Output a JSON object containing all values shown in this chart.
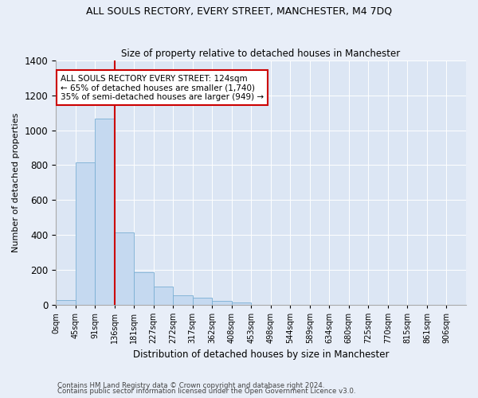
{
  "title": "ALL SOULS RECTORY, EVERY STREET, MANCHESTER, M4 7DQ",
  "subtitle": "Size of property relative to detached houses in Manchester",
  "xlabel": "Distribution of detached houses by size in Manchester",
  "ylabel": "Number of detached properties",
  "bin_labels": [
    "0sqm",
    "45sqm",
    "91sqm",
    "136sqm",
    "181sqm",
    "227sqm",
    "272sqm",
    "317sqm",
    "362sqm",
    "408sqm",
    "453sqm",
    "498sqm",
    "544sqm",
    "589sqm",
    "634sqm",
    "680sqm",
    "725sqm",
    "770sqm",
    "815sqm",
    "861sqm",
    "906sqm"
  ],
  "bar_values": [
    25,
    815,
    1065,
    415,
    185,
    105,
    55,
    40,
    20,
    10,
    0,
    0,
    0,
    0,
    0,
    0,
    0,
    0,
    0,
    0,
    0
  ],
  "bar_color": "#c5d9f0",
  "bar_edge_color": "#7aafd4",
  "vline_color": "#cc0000",
  "annotation_text": "ALL SOULS RECTORY EVERY STREET: 124sqm\n← 65% of detached houses are smaller (1,740)\n35% of semi-detached houses are larger (949) →",
  "annotation_box_color": "white",
  "annotation_box_edge": "#cc0000",
  "ylim": [
    0,
    1400
  ],
  "yticks": [
    0,
    200,
    400,
    600,
    800,
    1000,
    1200,
    1400
  ],
  "footer_line1": "Contains HM Land Registry data © Crown copyright and database right 2024.",
  "footer_line2": "Contains public sector information licensed under the Open Government Licence v3.0.",
  "bg_color": "#e8eef8",
  "plot_bg_color": "#dce6f4",
  "grid_color": "#ffffff"
}
